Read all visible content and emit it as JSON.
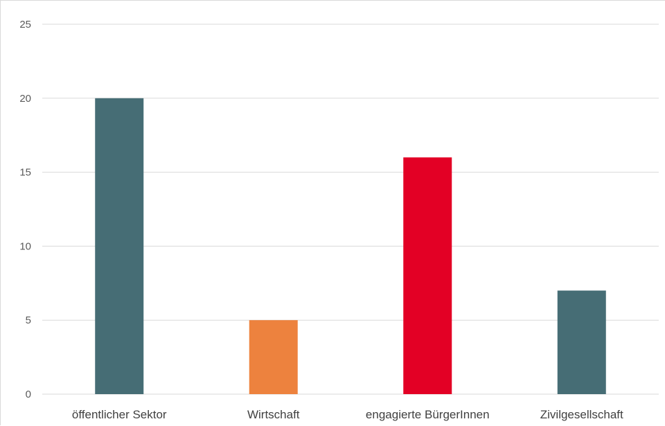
{
  "chart_data": {
    "type": "bar",
    "categories": [
      "öffentlicher Sektor",
      "Wirtschaft",
      "engagierte BürgerInnen",
      "Zivilgesellschaft"
    ],
    "values": [
      20,
      5,
      16,
      7
    ],
    "colors": [
      "#466d75",
      "#ed823e",
      "#e30025",
      "#466d75"
    ],
    "ylim": [
      0,
      25
    ],
    "yticks": [
      0,
      5,
      10,
      15,
      20,
      25
    ],
    "grid": true,
    "gridColor": "#d9d9d9",
    "legend": "none"
  }
}
